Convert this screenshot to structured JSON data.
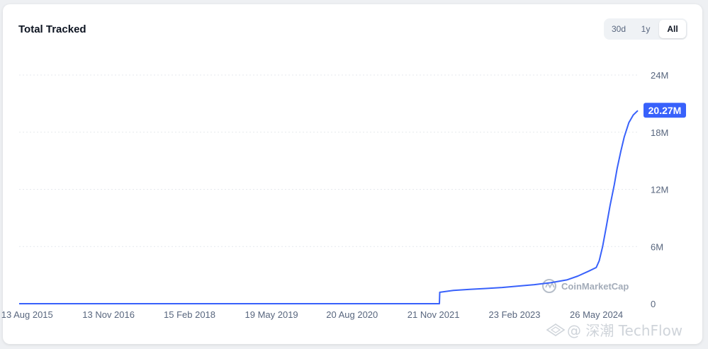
{
  "header": {
    "title": "Total Tracked"
  },
  "range_selector": {
    "options": [
      "30d",
      "1y",
      "All"
    ],
    "selected": "All"
  },
  "last_value_label": "20.27M",
  "watermark": "CoinMarketCap",
  "overlay_watermark": "@ 深潮 TechFlow",
  "colors": {
    "line": "#3861fb",
    "label_bg": "#3861fb",
    "grid": "#e6e9ee"
  },
  "chart_data": {
    "type": "line",
    "title": "Total Tracked",
    "xlabel": "",
    "ylabel": "",
    "ylim": [
      0,
      24000000
    ],
    "y_ticks": [
      0,
      6000000,
      12000000,
      18000000,
      24000000
    ],
    "y_tick_labels": [
      "0",
      "6M",
      "12M",
      "18M",
      "24M"
    ],
    "x_range": [
      "2015-06-15",
      "2025-01-05"
    ],
    "x_ticks": [
      "2015-08-13",
      "2016-11-13",
      "2018-02-15",
      "2019-05-19",
      "2020-08-20",
      "2021-11-21",
      "2023-02-23",
      "2024-05-26"
    ],
    "x_tick_labels": [
      "13 Aug 2015",
      "13 Nov 2016",
      "15 Feb 2018",
      "19 May 2019",
      "20 Aug 2020",
      "21 Nov 2021",
      "23 Feb 2023",
      "26 May 2024"
    ],
    "grid": true,
    "series": [
      {
        "points": [
          [
            "2015-06-15",
            0
          ],
          [
            "2016-06-01",
            0
          ],
          [
            "2018-01-01",
            0
          ],
          [
            "2019-06-01",
            0
          ],
          [
            "2020-06-01",
            0
          ],
          [
            "2021-06-01",
            0
          ],
          [
            "2021-12-01",
            0
          ],
          [
            "2021-12-12",
            0
          ],
          [
            "2021-12-14",
            1200000
          ],
          [
            "2022-03-01",
            1400000
          ],
          [
            "2022-06-01",
            1500000
          ],
          [
            "2022-09-01",
            1600000
          ],
          [
            "2022-12-01",
            1700000
          ],
          [
            "2023-03-01",
            1850000
          ],
          [
            "2023-06-01",
            2000000
          ],
          [
            "2023-09-01",
            2200000
          ],
          [
            "2023-12-01",
            2500000
          ],
          [
            "2024-02-01",
            2900000
          ],
          [
            "2024-04-01",
            3400000
          ],
          [
            "2024-05-15",
            3800000
          ],
          [
            "2024-06-01",
            4500000
          ],
          [
            "2024-06-20",
            6000000
          ],
          [
            "2024-07-10",
            8000000
          ],
          [
            "2024-08-01",
            10300000
          ],
          [
            "2024-08-25",
            12500000
          ],
          [
            "2024-09-10",
            14200000
          ],
          [
            "2024-10-01",
            16000000
          ],
          [
            "2024-10-20",
            17500000
          ],
          [
            "2024-11-15",
            19000000
          ],
          [
            "2024-12-10",
            19800000
          ],
          [
            "2025-01-05",
            20270000
          ]
        ]
      }
    ]
  }
}
